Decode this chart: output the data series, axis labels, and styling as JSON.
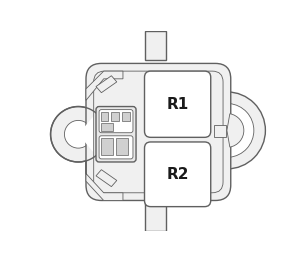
{
  "bg_color": "#ffffff",
  "line_color": "#606060",
  "fill_body": "#f0f0f0",
  "fill_white": "#ffffff",
  "lw_main": 1.0,
  "lw_thin": 0.6,
  "relay_labels": [
    "R1",
    "R2"
  ],
  "relay_font_size": 11,
  "fig_w": 3.0,
  "fig_h": 2.59,
  "dpi": 100
}
